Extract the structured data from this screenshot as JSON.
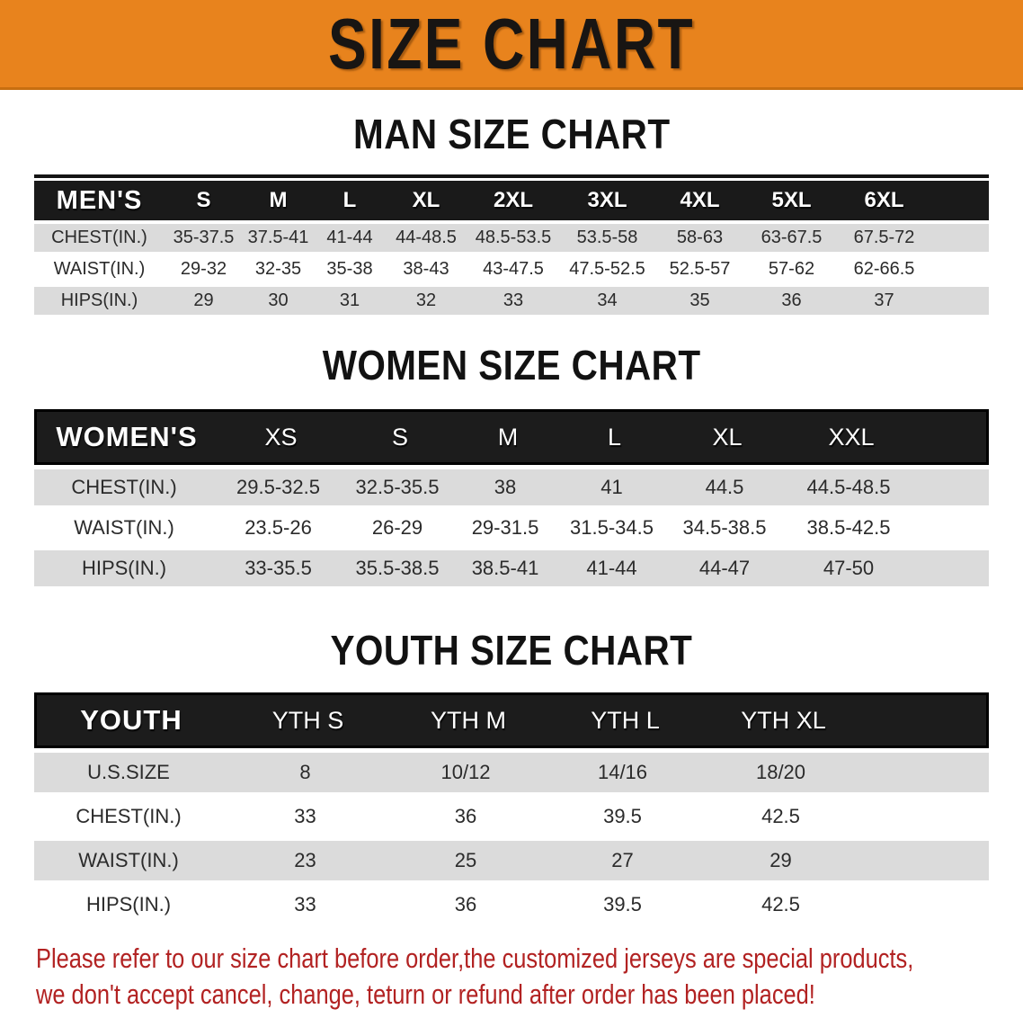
{
  "banner": {
    "title": "SIZE CHART",
    "background": "#E8831D"
  },
  "sections": {
    "men": {
      "heading": "MAN SIZE CHART",
      "table": {
        "header": {
          "label": "MEN'S",
          "sizes": [
            "S",
            "M",
            "L",
            "XL",
            "2XL",
            "3XL",
            "4XL",
            "5XL",
            "6XL"
          ]
        },
        "rows": [
          {
            "label": "CHEST(IN.)",
            "values": [
              "35-37.5",
              "37.5-41",
              "41-44",
              "44-48.5",
              "48.5-53.5",
              "53.5-58",
              "58-63",
              "63-67.5",
              "67.5-72"
            ]
          },
          {
            "label": "WAIST(IN.)",
            "values": [
              "29-32",
              "32-35",
              "35-38",
              "38-43",
              "43-47.5",
              "47.5-52.5",
              "52.5-57",
              "57-62",
              "62-66.5"
            ]
          },
          {
            "label": "HIPS(IN.)",
            "values": [
              "29",
              "30",
              "31",
              "32",
              "33",
              "34",
              "35",
              "36",
              "37"
            ]
          }
        ]
      }
    },
    "women": {
      "heading": "WOMEN SIZE CHART",
      "table": {
        "header": {
          "label": "WOMEN'S",
          "sizes": [
            "XS",
            "S",
            "M",
            "L",
            "XL",
            "XXL"
          ]
        },
        "rows": [
          {
            "label": "CHEST(IN.)",
            "values": [
              "29.5-32.5",
              "32.5-35.5",
              "38",
              "41",
              "44.5",
              "44.5-48.5"
            ]
          },
          {
            "label": "WAIST(IN.)",
            "values": [
              "23.5-26",
              "26-29",
              "29-31.5",
              "31.5-34.5",
              "34.5-38.5",
              "38.5-42.5"
            ]
          },
          {
            "label": "HIPS(IN.)",
            "values": [
              "33-35.5",
              "35.5-38.5",
              "38.5-41",
              "41-44",
              "44-47",
              "47-50"
            ]
          }
        ]
      }
    },
    "youth": {
      "heading": "YOUTH SIZE CHART",
      "table": {
        "header": {
          "label": "YOUTH",
          "sizes": [
            "YTH S",
            "YTH M",
            "YTH L",
            "YTH XL"
          ]
        },
        "rows": [
          {
            "label": "U.S.SIZE",
            "values": [
              "8",
              "10/12",
              "14/16",
              "18/20"
            ]
          },
          {
            "label": "CHEST(IN.)",
            "values": [
              "33",
              "36",
              "39.5",
              "42.5"
            ]
          },
          {
            "label": "WAIST(IN.)",
            "values": [
              "23",
              "25",
              "27",
              "29"
            ]
          },
          {
            "label": "HIPS(IN.)",
            "values": [
              "33",
              "36",
              "39.5",
              "42.5"
            ]
          }
        ]
      }
    }
  },
  "footer": {
    "line1": "Please refer to our size chart before order,the customized jerseys are special products,",
    "line2": "we don't accept cancel, change, teturn or refund after order has been placed!"
  },
  "colors": {
    "banner_orange": "#E8831D",
    "header_black": "#1A1A1A",
    "row_gray": "#DBDBDB",
    "footer_red": "#B22222"
  }
}
